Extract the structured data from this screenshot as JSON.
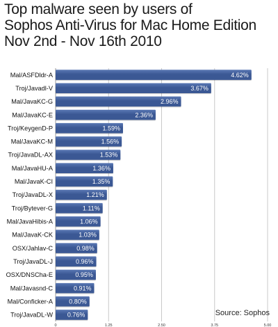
{
  "title_lines": [
    "Top malware seen by users of",
    "Sophos Anti-Virus for Mac Home Edition",
    "Nov 2nd - Nov 16th 2010"
  ],
  "source": "Source: Sophos",
  "colors": {
    "bar": "#3b5894",
    "bar_highlight": "#5a78b4",
    "grid": "#c8c8c8"
  },
  "chart_data": {
    "type": "bar",
    "orientation": "horizontal",
    "categories": [
      "Mal/ASFDldr-A",
      "Troj/Javadl-V",
      "Mal/JavaKC-G",
      "Mal/JavaKC-E",
      "Troj/KeygenD-P",
      "Mal/JavaKC-M",
      "Troj/JavaDL-AX",
      "Mal/JavaHU-A",
      "Mal/JavaK-CI",
      "Troj/JavaDL-X",
      "Troj/Bytever-G",
      "Mal/JavaHibis-A",
      "Mal/JavaK-CK",
      "OSX/Jahlav-C",
      "Troj/JavaDL-J",
      "OSX/DNSCha-E",
      "Mal/Javasnd-C",
      "Mal/Conficker-A",
      "Troj/JavaDL-W"
    ],
    "values": [
      4.62,
      3.67,
      2.96,
      2.36,
      1.59,
      1.56,
      1.53,
      1.36,
      1.35,
      1.21,
      1.11,
      1.06,
      1.03,
      0.98,
      0.96,
      0.95,
      0.91,
      0.8,
      0.76
    ],
    "value_labels": [
      "4.62%",
      "3.67%",
      "2.96%",
      "2.36%",
      "1.59%",
      "1.56%",
      "1.53%",
      "1.36%",
      "1.35%",
      "1.21%",
      "1.11%",
      "1.06%",
      "1.03%",
      "0.98%",
      "0.96%",
      "0.95%",
      "0.91%",
      "0.80%",
      "0.76%"
    ],
    "xlim": [
      0,
      5
    ],
    "xticks": [
      0,
      1.25,
      2.5,
      3.75,
      5
    ],
    "xtick_labels": [
      "0",
      "1.25",
      "2.50",
      "3.75",
      "5.00"
    ],
    "title": "Top malware seen by users of Sophos Anti-Virus for Mac Home Edition Nov 2nd - Nov 16th 2010",
    "xlabel": "",
    "ylabel": "",
    "grid": true
  }
}
